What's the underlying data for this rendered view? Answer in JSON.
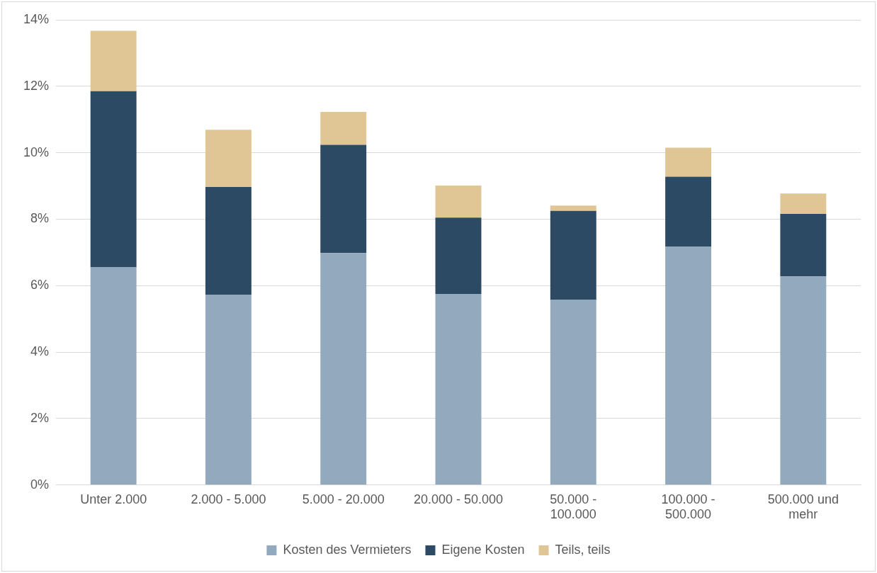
{
  "chart_data": {
    "type": "bar",
    "stacked": true,
    "categories": [
      "Unter 2.000",
      "2.000 - 5.000",
      "5.000 - 20.000",
      "20.000 - 50.000",
      "50.000 - 100.000",
      "100.000 - 500.000",
      "500.000 und mehr"
    ],
    "series": [
      {
        "name": "Kosten des Vermieters",
        "color": "#93a9bd",
        "values": [
          6.55,
          5.73,
          6.98,
          5.75,
          5.57,
          7.18,
          6.28
        ]
      },
      {
        "name": "Eigene Kosten",
        "color": "#2d4a64",
        "values": [
          5.3,
          3.24,
          3.26,
          2.3,
          2.68,
          2.1,
          1.88
        ]
      },
      {
        "name": "Teils, teils",
        "color": "#e0c595",
        "values": [
          1.82,
          1.72,
          0.99,
          0.96,
          0.16,
          0.87,
          0.61
        ]
      }
    ],
    "ylim": [
      0,
      14
    ],
    "yticks": [
      {
        "value": 0,
        "label": "0%"
      },
      {
        "value": 2,
        "label": "2%"
      },
      {
        "value": 4,
        "label": "4%"
      },
      {
        "value": 6,
        "label": "6%"
      },
      {
        "value": 8,
        "label": "8%"
      },
      {
        "value": 10,
        "label": "10%"
      },
      {
        "value": 12,
        "label": "12%"
      },
      {
        "value": 14,
        "label": "14%"
      }
    ],
    "grid": "y",
    "legend": "bottom"
  }
}
